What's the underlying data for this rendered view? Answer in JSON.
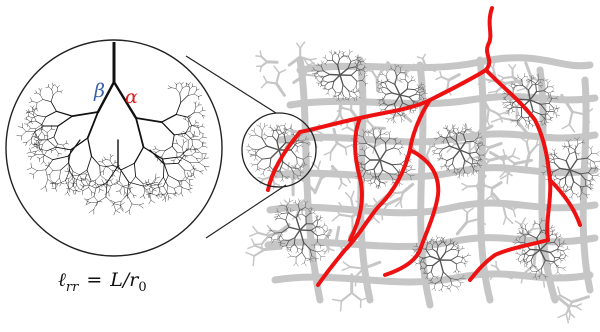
{
  "labels": {
    "beta": "β",
    "alpha": "α",
    "formula": "ℓrr = L/r0"
  },
  "formula": {
    "l": "ℓ",
    "l_sub": "rr",
    "eq": "=",
    "rhs": "L/r",
    "rhs_sub": "0"
  },
  "colors": {
    "tree": "#111111",
    "vessel_gray": "#c6c6c6",
    "vessel_red": "#ee1111",
    "beta": "#3a62a8",
    "alpha": "#e02020",
    "circle": "#222222",
    "background": "#ffffff"
  }
}
